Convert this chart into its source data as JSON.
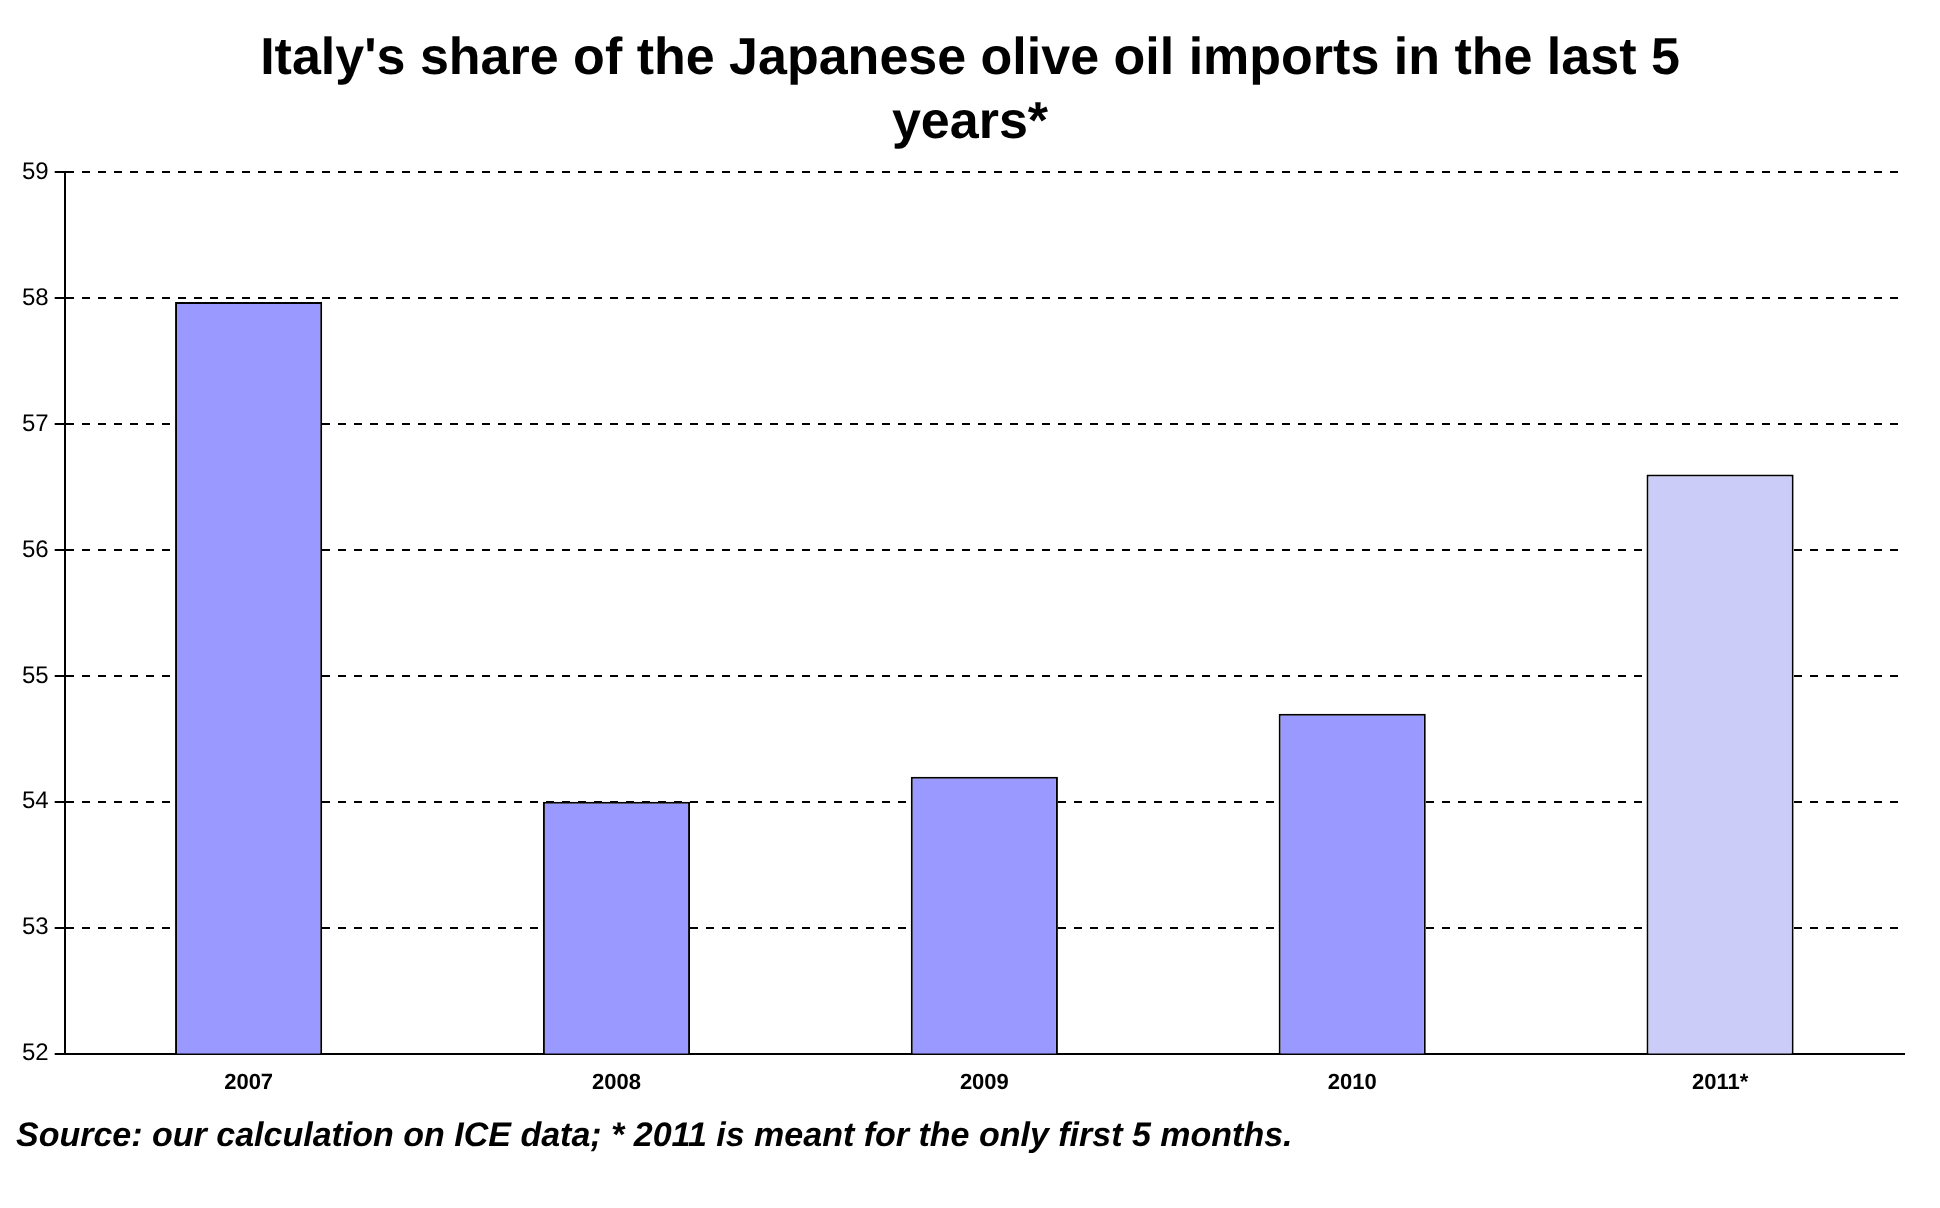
{
  "chart_data": {
    "type": "bar",
    "title": "Italy's share of the Japanese olive oil imports in the last 5 years*",
    "categories": [
      "2007",
      "2008",
      "2009",
      "2010",
      "2011*"
    ],
    "values": [
      57.97,
      54.0,
      54.2,
      54.7,
      56.6
    ],
    "colors": [
      "#9999ff",
      "#9999ff",
      "#9999ff",
      "#9999ff",
      "#ccccf8"
    ],
    "ylim": [
      52,
      59
    ],
    "yticks": [
      52,
      53,
      54,
      55,
      56,
      57,
      58,
      59
    ],
    "grid": "y",
    "legend": false,
    "annotations": [
      "Source: our calculation on ICE data; * 2011 is meant  for the only first 5 months."
    ]
  }
}
